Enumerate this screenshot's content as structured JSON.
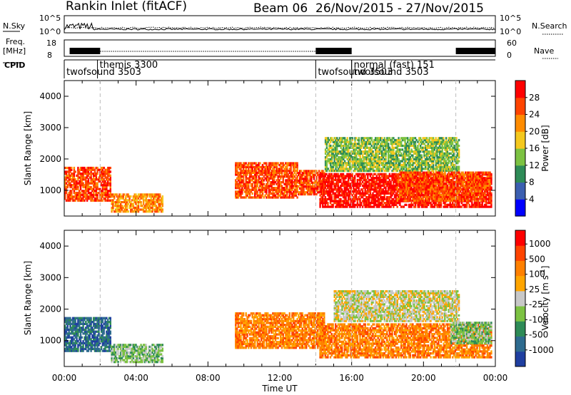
{
  "title": {
    "radar": "Rankin Inlet (fitACF)",
    "beam": "Beam 06",
    "dates": "26/Nov/2015 - 27/Nov/2015"
  },
  "header": {
    "nsky_label": "N.Sky",
    "nsearch_label": "N.Search",
    "noise_ticks_left": [
      "10^5",
      "10^0"
    ],
    "noise_ticks_right": [
      "10^5",
      "10^0"
    ],
    "freq_label_1": "Freq.",
    "freq_label_2": "[MHz]",
    "freq_ticks": [
      "18",
      "8"
    ],
    "nave_label": "Nave",
    "nave_ticks": [
      "60",
      "0"
    ],
    "cpid_label": "CPID",
    "modes": [
      {
        "name": "twofsound 3503",
        "start_h": 0.0,
        "end_h": 14.0,
        "row": 2
      },
      {
        "name": "themis 3300",
        "start_h": 1.85,
        "end_h": 2.0,
        "row": 1
      },
      {
        "name": "twofsound 3503",
        "start_h": 14.0,
        "end_h": 16.0,
        "row": 2
      },
      {
        "name": "normal (fast) 151",
        "start_h": 16.0,
        "end_h": 16.1,
        "row": 1
      },
      {
        "name": "twofsound 3503",
        "start_h": 16.0,
        "end_h": 24.0,
        "row": 2
      }
    ]
  },
  "chart_data": [
    {
      "type": "heatmap",
      "panel": "power",
      "ylabel": "Slant Range [km]",
      "xlabel": "Time UT",
      "xlim": [
        0,
        24
      ],
      "ylim": [
        180,
        4500
      ],
      "yticks": [
        1000,
        2000,
        3000,
        4000
      ],
      "xticks": [
        "00:00",
        "04:00",
        "08:00",
        "12:00",
        "16:00",
        "20:00",
        "00:00"
      ],
      "colorbar_label": "Power [dB]",
      "colorbar_ticks": [
        "4",
        "8",
        "12",
        "16",
        "20",
        "24",
        "28"
      ],
      "colors": [
        "#0000ff",
        "#3b5fb0",
        "#2e8b57",
        "#7cc242",
        "#f4c81e",
        "#ff8c00",
        "#ff4400",
        "#ff0000"
      ],
      "echo_regions": [
        {
          "t0": 0.0,
          "t1": 2.6,
          "r0": 650,
          "r1": 1750,
          "level": 6
        },
        {
          "t0": 2.6,
          "t1": 5.5,
          "r0": 300,
          "r1": 900,
          "level": 5
        },
        {
          "t0": 9.5,
          "t1": 13.0,
          "r0": 750,
          "r1": 1900,
          "level": 6
        },
        {
          "t0": 13.0,
          "t1": 14.5,
          "r0": 850,
          "r1": 1650,
          "level": 6
        },
        {
          "t0": 14.2,
          "t1": 23.8,
          "r0": 450,
          "r1": 1550,
          "level": 7
        },
        {
          "t0": 14.5,
          "t1": 22.0,
          "r0": 1600,
          "r1": 2700,
          "level": 3
        },
        {
          "t0": 18.5,
          "t1": 23.8,
          "r0": 650,
          "r1": 1600,
          "level": 6
        }
      ]
    },
    {
      "type": "heatmap",
      "panel": "velocity",
      "ylabel": "Slant Range [km]",
      "xlabel": "Time UT",
      "xlim": [
        0,
        24
      ],
      "ylim": [
        180,
        4500
      ],
      "yticks": [
        1000,
        2000,
        3000,
        4000
      ],
      "xticks": [
        "00:00",
        "04:00",
        "08:00",
        "12:00",
        "16:00",
        "20:00",
        "00:00"
      ],
      "colorbar_label": "Velocity [m s^-1]",
      "colorbar_ticks": [
        "1000",
        "500",
        "100",
        "25",
        "-25",
        "-100",
        "-500",
        "-1000"
      ],
      "colors": [
        "#1f3fa0",
        "#2e6b8f",
        "#2e8b57",
        "#7cc242",
        "#c8c8c8",
        "#ffa500",
        "#ff8000",
        "#ff4400",
        "#ff0000"
      ],
      "echo_regions": [
        {
          "t0": 0.0,
          "t1": 2.6,
          "r0": 650,
          "r1": 1750,
          "level": 1
        },
        {
          "t0": 2.6,
          "t1": 5.5,
          "r0": 300,
          "r1": 900,
          "level": 3
        },
        {
          "t0": 9.5,
          "t1": 14.5,
          "r0": 750,
          "r1": 1900,
          "level": 6
        },
        {
          "t0": 14.2,
          "t1": 23.8,
          "r0": 450,
          "r1": 1550,
          "level": 6
        },
        {
          "t0": 15.0,
          "t1": 22.0,
          "r0": 1600,
          "r1": 2600,
          "level": 4
        },
        {
          "t0": 21.5,
          "t1": 23.8,
          "r0": 900,
          "r1": 1600,
          "level": 3
        }
      ]
    }
  ]
}
